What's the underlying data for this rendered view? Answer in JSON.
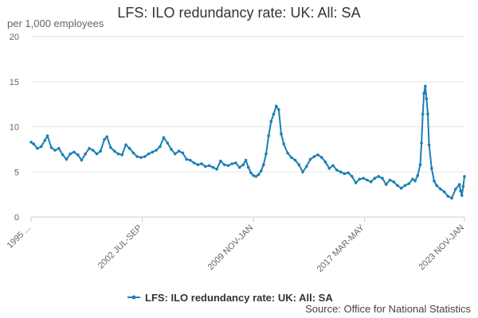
{
  "chart_data": {
    "type": "line",
    "title": "LFS: ILO redundancy rate: UK: All: SA",
    "y_unit_label": "per 1,000 employees",
    "ylim": [
      0,
      20
    ],
    "y_ticks": [
      0,
      5,
      10,
      15,
      20
    ],
    "x_start": "1995-04",
    "x_end": "2023-11",
    "x_tick_labels": [
      {
        "label": "1995 ...",
        "date": "1995-04"
      },
      {
        "label": "2002 JUL-SEP",
        "date": "2002-08"
      },
      {
        "label": "2009 NOV-JAN",
        "date": "2009-12"
      },
      {
        "label": "2017 MAR-MAY",
        "date": "2017-04"
      },
      {
        "label": "2023 NOV-JAN",
        "date": "2023-11"
      }
    ],
    "grid": true,
    "legend_position": "bottom",
    "source": "Source: Office for National Statistics",
    "series": [
      {
        "name": "LFS: ILO redundancy rate: UK: All: SA",
        "color": "#1a7fb5",
        "points": [
          [
            "1995-04",
            8.3
          ],
          [
            "1995-06",
            8.1
          ],
          [
            "1995-09",
            7.6
          ],
          [
            "1995-12",
            7.8
          ],
          [
            "1996-03",
            8.5
          ],
          [
            "1996-05",
            9.0
          ],
          [
            "1996-08",
            7.7
          ],
          [
            "1996-11",
            7.4
          ],
          [
            "1997-02",
            7.6
          ],
          [
            "1997-05",
            6.9
          ],
          [
            "1997-08",
            6.4
          ],
          [
            "1997-11",
            7.0
          ],
          [
            "1998-02",
            7.2
          ],
          [
            "1998-05",
            6.9
          ],
          [
            "1998-08",
            6.3
          ],
          [
            "1998-11",
            7.0
          ],
          [
            "1999-02",
            7.6
          ],
          [
            "1999-05",
            7.4
          ],
          [
            "1999-08",
            7.0
          ],
          [
            "1999-11",
            7.3
          ],
          [
            "2000-02",
            8.6
          ],
          [
            "2000-04",
            8.9
          ],
          [
            "2000-07",
            7.7
          ],
          [
            "2000-10",
            7.3
          ],
          [
            "2001-01",
            7.0
          ],
          [
            "2001-04",
            6.9
          ],
          [
            "2001-07",
            8.0
          ],
          [
            "2001-10",
            7.6
          ],
          [
            "2002-01",
            7.1
          ],
          [
            "2002-04",
            6.7
          ],
          [
            "2002-07",
            6.6
          ],
          [
            "2002-10",
            6.7
          ],
          [
            "2003-01",
            7.0
          ],
          [
            "2003-04",
            7.2
          ],
          [
            "2003-07",
            7.4
          ],
          [
            "2003-10",
            7.8
          ],
          [
            "2004-01",
            8.8
          ],
          [
            "2004-04",
            8.2
          ],
          [
            "2004-07",
            7.5
          ],
          [
            "2004-10",
            7.0
          ],
          [
            "2005-01",
            7.3
          ],
          [
            "2005-04",
            7.1
          ],
          [
            "2005-07",
            6.4
          ],
          [
            "2005-10",
            6.3
          ],
          [
            "2006-01",
            6.0
          ],
          [
            "2006-04",
            5.8
          ],
          [
            "2006-07",
            5.9
          ],
          [
            "2006-10",
            5.6
          ],
          [
            "2007-01",
            5.7
          ],
          [
            "2007-04",
            5.5
          ],
          [
            "2007-07",
            5.3
          ],
          [
            "2007-10",
            6.2
          ],
          [
            "2008-01",
            5.8
          ],
          [
            "2008-04",
            5.7
          ],
          [
            "2008-07",
            5.9
          ],
          [
            "2008-10",
            6.0
          ],
          [
            "2009-01",
            5.5
          ],
          [
            "2009-04",
            5.8
          ],
          [
            "2009-06",
            6.3
          ],
          [
            "2009-08",
            5.5
          ],
          [
            "2009-10",
            4.9
          ],
          [
            "2009-12",
            4.6
          ],
          [
            "2010-02",
            4.5
          ],
          [
            "2010-04",
            4.7
          ],
          [
            "2010-06",
            5.1
          ],
          [
            "2010-08",
            5.8
          ],
          [
            "2010-10",
            7.0
          ],
          [
            "2010-12",
            9.0
          ],
          [
            "2011-02",
            10.6
          ],
          [
            "2011-04",
            11.4
          ],
          [
            "2011-06",
            12.3
          ],
          [
            "2011-08",
            11.9
          ],
          [
            "2011-10",
            9.2
          ],
          [
            "2011-12",
            8.1
          ],
          [
            "2012-03",
            7.1
          ],
          [
            "2012-06",
            6.6
          ],
          [
            "2012-09",
            6.3
          ],
          [
            "2012-12",
            5.8
          ],
          [
            "2013-03",
            5.0
          ],
          [
            "2013-06",
            5.6
          ],
          [
            "2013-09",
            6.4
          ],
          [
            "2013-12",
            6.7
          ],
          [
            "2014-03",
            6.9
          ],
          [
            "2014-06",
            6.6
          ],
          [
            "2014-09",
            6.1
          ],
          [
            "2014-12",
            5.4
          ],
          [
            "2015-03",
            5.7
          ],
          [
            "2015-06",
            5.2
          ],
          [
            "2015-09",
            5.0
          ],
          [
            "2015-12",
            4.8
          ],
          [
            "2016-03",
            4.9
          ],
          [
            "2016-06",
            4.5
          ],
          [
            "2016-09",
            3.8
          ],
          [
            "2016-12",
            4.2
          ],
          [
            "2017-03",
            4.3
          ],
          [
            "2017-06",
            4.1
          ],
          [
            "2017-09",
            3.9
          ],
          [
            "2017-12",
            4.3
          ],
          [
            "2018-03",
            4.5
          ],
          [
            "2018-06",
            4.3
          ],
          [
            "2018-09",
            3.6
          ],
          [
            "2018-12",
            4.1
          ],
          [
            "2019-03",
            3.9
          ],
          [
            "2019-06",
            3.5
          ],
          [
            "2019-09",
            3.2
          ],
          [
            "2019-12",
            3.5
          ],
          [
            "2020-03",
            3.7
          ],
          [
            "2020-06",
            4.2
          ],
          [
            "2020-08",
            4.0
          ],
          [
            "2020-10",
            4.6
          ],
          [
            "2020-12",
            5.8
          ],
          [
            "2021-01",
            8.2
          ],
          [
            "2021-02",
            11.4
          ],
          [
            "2021-03",
            13.7
          ],
          [
            "2021-04",
            14.5
          ],
          [
            "2021-05",
            13.1
          ],
          [
            "2021-06",
            11.4
          ],
          [
            "2021-07",
            8.0
          ],
          [
            "2021-09",
            5.4
          ],
          [
            "2021-11",
            4.0
          ],
          [
            "2022-01",
            3.5
          ],
          [
            "2022-04",
            3.1
          ],
          [
            "2022-07",
            2.8
          ],
          [
            "2022-10",
            2.3
          ],
          [
            "2023-01",
            2.1
          ],
          [
            "2023-04",
            3.1
          ],
          [
            "2023-07",
            3.6
          ],
          [
            "2023-08",
            2.9
          ],
          [
            "2023-09",
            2.4
          ],
          [
            "2023-10",
            3.4
          ],
          [
            "2023-11",
            4.5
          ]
        ]
      }
    ]
  }
}
